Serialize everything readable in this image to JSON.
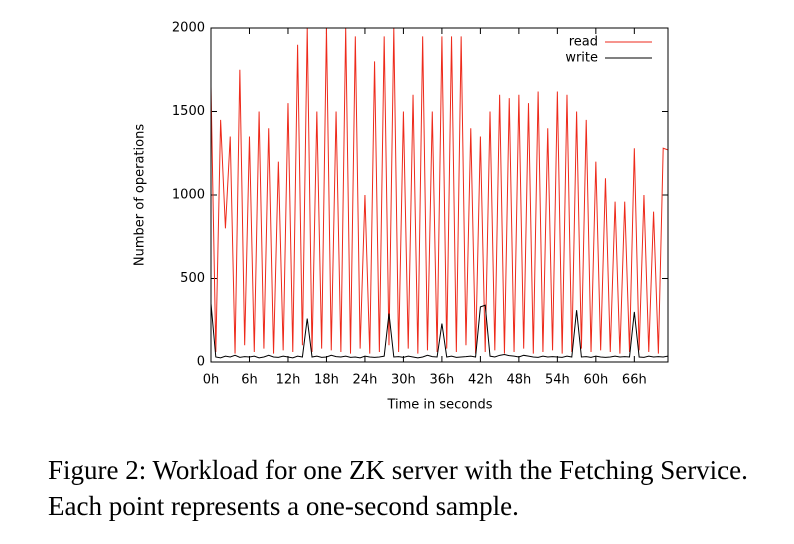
{
  "chart_data": {
    "type": "line",
    "x_label": "Time in seconds",
    "y_label": "Number of operations",
    "x": [
      0,
      0.75,
      1.5,
      2.25,
      3,
      3.75,
      4.5,
      5.25,
      6,
      6.75,
      7.5,
      8.25,
      9,
      9.75,
      10.5,
      11.25,
      12,
      12.75,
      13.5,
      14.25,
      15,
      15.75,
      16.5,
      17.25,
      18,
      18.75,
      19.5,
      20.25,
      21,
      21.75,
      22.5,
      23.25,
      24,
      24.75,
      25.5,
      26.25,
      27,
      27.75,
      28.5,
      29.25,
      30,
      30.75,
      31.5,
      32.25,
      33,
      33.75,
      34.5,
      35.25,
      36,
      36.75,
      37.5,
      38.25,
      39,
      39.75,
      40.5,
      41.25,
      42,
      42.75,
      43.5,
      44.25,
      45,
      45.75,
      46.5,
      47.25,
      48,
      48.75,
      49.5,
      50.25,
      51,
      51.75,
      52.5,
      53.25,
      54,
      54.75,
      55.5,
      56.25,
      57,
      57.75,
      58.5,
      59.25,
      60,
      60.75,
      61.5,
      62.25,
      63,
      63.75,
      64.5,
      65.25,
      66,
      66.75,
      67.5,
      68.25,
      69,
      69.75,
      70.5,
      71.25
    ],
    "series": [
      {
        "name": "read",
        "color": "#ee2a1b",
        "values": [
          1650,
          60,
          1450,
          800,
          1350,
          50,
          1750,
          100,
          1350,
          60,
          1500,
          80,
          1400,
          50,
          1200,
          70,
          1550,
          60,
          1900,
          100,
          2000,
          60,
          1500,
          80,
          2000,
          70,
          1500,
          60,
          2000,
          50,
          1950,
          80,
          1000,
          50,
          1800,
          60,
          1950,
          100,
          2000,
          60,
          1500,
          80,
          1600,
          50,
          1950,
          70,
          1500,
          60,
          1950,
          80,
          1950,
          60,
          1950,
          100,
          1400,
          50,
          1350,
          60,
          1500,
          70,
          1600,
          50,
          1580,
          60,
          1600,
          80,
          1550,
          50,
          1620,
          60,
          1400,
          70,
          1620,
          50,
          1600,
          60,
          1500,
          80,
          1450,
          60,
          1200,
          70,
          1100,
          60,
          960,
          50,
          960,
          60,
          1280,
          70,
          1000,
          60,
          900,
          50,
          1280,
          1270
        ]
      },
      {
        "name": "write",
        "color": "#000000",
        "values": [
          350,
          30,
          25,
          35,
          30,
          40,
          28,
          32,
          30,
          35,
          25,
          30,
          40,
          30,
          28,
          35,
          30,
          25,
          35,
          30,
          260,
          30,
          35,
          28,
          30,
          40,
          32,
          30,
          35,
          28,
          30,
          25,
          35,
          30,
          28,
          30,
          35,
          290,
          30,
          32,
          28,
          35,
          30,
          25,
          30,
          40,
          32,
          30,
          230,
          30,
          35,
          28,
          30,
          32,
          35,
          30,
          330,
          340,
          35,
          30,
          40,
          45,
          38,
          35,
          30,
          40,
          35,
          30,
          28,
          35,
          30,
          32,
          30,
          28,
          35,
          30,
          310,
          30,
          32,
          28,
          35,
          30,
          28,
          30,
          35,
          30,
          32,
          30,
          300,
          30,
          28,
          35,
          30,
          32,
          30,
          35
        ]
      }
    ],
    "xlim": [
      0,
      71.25
    ],
    "xticks": [
      {
        "value": 0,
        "label": "0h"
      },
      {
        "value": 6,
        "label": "6h"
      },
      {
        "value": 12,
        "label": "12h"
      },
      {
        "value": 18,
        "label": "18h"
      },
      {
        "value": 24,
        "label": "24h"
      },
      {
        "value": 30,
        "label": "30h"
      },
      {
        "value": 36,
        "label": "36h"
      },
      {
        "value": 42,
        "label": "42h"
      },
      {
        "value": 48,
        "label": "48h"
      },
      {
        "value": 54,
        "label": "54h"
      },
      {
        "value": 60,
        "label": "60h"
      },
      {
        "value": 66,
        "label": "66h"
      }
    ],
    "ylim": [
      0,
      2000
    ],
    "yticks": [
      0,
      500,
      1000,
      1500,
      2000
    ],
    "grid": false,
    "legend": "top-right"
  },
  "caption": "Figure 2: Workload for one ZK server with the Fetching Service. Each point represents a one-second sample."
}
